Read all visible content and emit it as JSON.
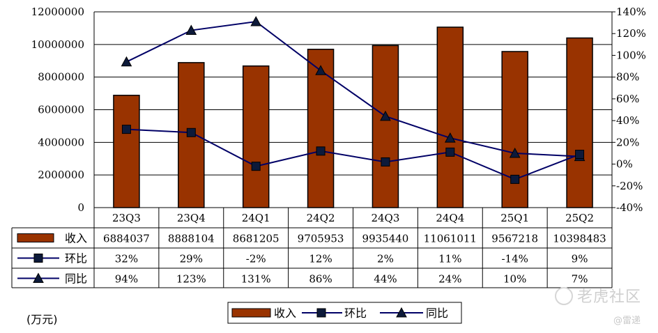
{
  "unit_label": "(万元)",
  "watermark": {
    "text": "老虎社区",
    "icon": "tiger-logo-icon",
    "credit": "@雷递"
  },
  "colors": {
    "bar": "#993300",
    "line": "#000066",
    "marker": "#0d1a3a",
    "grid": "#000000"
  },
  "chart_data": {
    "type": "bar",
    "categories": [
      "23Q3",
      "23Q4",
      "24Q1",
      "24Q2",
      "24Q3",
      "24Q4",
      "25Q1",
      "25Q2"
    ],
    "title": "",
    "ylim": [
      0,
      12000000
    ],
    "y_ticks": [
      "0",
      "2000000",
      "4000000",
      "6000000",
      "8000000",
      "10000000",
      "12000000"
    ],
    "y2lim": [
      -40,
      140
    ],
    "y2_ticks": [
      "-40%",
      "-20%",
      "0%",
      "20%",
      "40%",
      "60%",
      "80%",
      "100%",
      "120%",
      "140%"
    ],
    "grid": true,
    "legend_position": "bottom",
    "series": [
      {
        "name": "收入",
        "kind": "bar",
        "axis": "left",
        "values": [
          6884037,
          8888104,
          8681205,
          9705953,
          9935440,
          11061011,
          9567218,
          10398483
        ],
        "labels": [
          "6884037",
          "8888104",
          "8681205",
          "9705953",
          "9935440",
          "11061011",
          "9567218",
          "10398483"
        ]
      },
      {
        "name": "环比",
        "kind": "line",
        "marker": "square",
        "axis": "right",
        "values": [
          32,
          29,
          -2,
          12,
          2,
          11,
          -14,
          9
        ],
        "labels": [
          "32%",
          "29%",
          "-2%",
          "12%",
          "2%",
          "11%",
          "-14%",
          "9%"
        ]
      },
      {
        "name": "同比",
        "kind": "line",
        "marker": "triangle",
        "axis": "right",
        "values": [
          94,
          123,
          131,
          86,
          44,
          24,
          10,
          7
        ],
        "labels": [
          "94%",
          "123%",
          "131%",
          "86%",
          "44%",
          "24%",
          "10%",
          "7%"
        ]
      }
    ]
  }
}
